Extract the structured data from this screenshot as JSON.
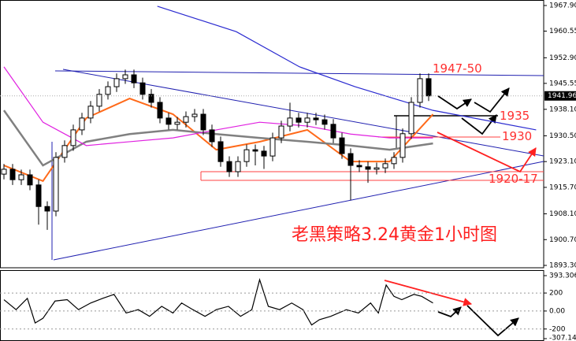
{
  "chart_data": {
    "type": "candlestick",
    "open": [
      1919.5,
      1920.9,
      1917.9,
      1919.3,
      1916.4,
      1910.2,
      1908.9,
      1924.3,
      1927.7,
      1932.2,
      1935.6,
      1939.0,
      1942.4,
      1944.6,
      1946.9,
      1948.0,
      1945.7,
      1942.4,
      1940.1,
      1935.6,
      1933.8,
      1934.4,
      1936.0,
      1936.7,
      1932.2,
      1928.8,
      1923.1,
      1920.2,
      1923.1,
      1926.5,
      1926.1,
      1924.7,
      1929.9,
      1933.3,
      1935.6,
      1934.4,
      1935.6,
      1935.1,
      1933.8,
      1929.9,
      1925.4,
      1922.0,
      1921.6,
      1920.9,
      1921.3,
      1922.5,
      1924.3,
      1931.1,
      1940.1,
      1946.9
    ],
    "close": [
      1920.9,
      1917.9,
      1919.3,
      1916.4,
      1910.2,
      1908.9,
      1924.3,
      1927.7,
      1932.2,
      1935.6,
      1939.0,
      1942.4,
      1944.6,
      1946.9,
      1948.0,
      1945.7,
      1942.4,
      1940.1,
      1935.6,
      1933.8,
      1934.4,
      1936.0,
      1936.7,
      1932.2,
      1928.8,
      1923.1,
      1920.2,
      1923.1,
      1926.5,
      1926.1,
      1924.7,
      1929.9,
      1933.3,
      1935.6,
      1934.4,
      1935.6,
      1935.1,
      1933.8,
      1929.9,
      1925.4,
      1922.0,
      1921.6,
      1920.9,
      1921.3,
      1922.5,
      1924.3,
      1931.1,
      1940.1,
      1946.9,
      1941.96
    ],
    "high": [
      1922.4,
      1922.4,
      1920.8,
      1920.8,
      1917.9,
      1911.7,
      1925.8,
      1929.2,
      1933.7,
      1937.1,
      1940.5,
      1943.9,
      1946.1,
      1948.4,
      1949.5,
      1949.5,
      1947.2,
      1943.9,
      1941.6,
      1937.1,
      1935.9,
      1937.5,
      1938.2,
      1938.2,
      1933.7,
      1930.3,
      1924.6,
      1924.6,
      1928.0,
      1928.0,
      1927.6,
      1931.4,
      1934.8,
      1940.0,
      1937.1,
      1937.1,
      1937.1,
      1936.6,
      1935.3,
      1931.4,
      1926.9,
      1923.5,
      1923.1,
      1922.8,
      1924.0,
      1925.8,
      1932.6,
      1941.6,
      1948.4,
      1948.4
    ],
    "low": [
      1918.0,
      1916.4,
      1916.4,
      1914.9,
      1905.0,
      1903.5,
      1907.4,
      1922.8,
      1926.2,
      1930.7,
      1934.1,
      1937.5,
      1940.9,
      1943.1,
      1945.4,
      1944.2,
      1940.9,
      1938.6,
      1934.1,
      1932.3,
      1932.3,
      1932.9,
      1934.5,
      1930.7,
      1927.3,
      1921.6,
      1918.7,
      1918.7,
      1921.6,
      1922.0,
      1921.0,
      1923.2,
      1928.4,
      1931.8,
      1932.9,
      1932.9,
      1933.6,
      1932.3,
      1928.4,
      1923.9,
      1912.0,
      1920.1,
      1917.0,
      1919.4,
      1919.8,
      1921.0,
      1922.8,
      1929.6,
      1938.6,
      1940.5
    ],
    "moving_averages": [
      {
        "color": "#ff6a1a",
        "x": [
          0,
          4.5,
          9.5,
          14.5,
          19.5,
          24.5,
          29.5,
          35,
          40,
          44.5,
          49.5
        ],
        "values": [
          1922.0,
          1917.5,
          1935.6,
          1941.2,
          1936.7,
          1926.5,
          1928.8,
          1932.2,
          1923.1,
          1923.1,
          1936.7
        ]
      },
      {
        "color": "#808080",
        "x": [
          0,
          4.5,
          9.5,
          14.5,
          19.5,
          24.5,
          29.5,
          35,
          40,
          44.5,
          49.5
        ],
        "values": [
          1937.8,
          1922.0,
          1928.8,
          1931.0,
          1932.2,
          1931.0,
          1929.9,
          1928.8,
          1927.7,
          1926.5,
          1928.3
        ]
      },
      {
        "color": "#e020e0",
        "x": [
          0,
          4.5,
          9.5,
          14.5,
          19.5,
          24.5,
          29.5,
          35,
          40,
          44.5,
          49.5
        ],
        "values": [
          1950.3,
          1934.4,
          1927.7,
          1928.8,
          1929.9,
          1932.2,
          1934.4,
          1933.3,
          1931.0,
          1929.9,
          1929.9
        ]
      },
      {
        "color": "#2a2ad0",
        "x": [
          17.7,
          26.8,
          34.1,
          40.5,
          49.5,
          61.4
        ],
        "values": [
          1967.7,
          1960.4,
          1950.3,
          1944.6,
          1937.8,
          1932.2
        ]
      }
    ],
    "ylim": [
      1893.3,
      1967.9
    ],
    "yticks": [
      {
        "value": 1967.9,
        "label": "1967.90"
      },
      1960.55,
      {
        "value": 1952.9,
        "label": "1952.90"
      },
      1945.55,
      {
        "value": 1938.1,
        "label": "1938.10"
      },
      {
        "value": 1930.5,
        "label": "1930.50"
      },
      {
        "value": 1923.1,
        "label": "1923.10"
      },
      {
        "value": 1915.7,
        "label": "1915.70"
      },
      {
        "value": 1908.1,
        "label": "1908.10"
      },
      {
        "value": 1900.7,
        "label": "1900.70"
      },
      {
        "value": 1893.3,
        "label": "1893.30"
      }
    ],
    "current_price": 1941.96,
    "annotations": [
      "1947-50",
      "1935",
      "1930",
      "1920-17",
      "老黑策略3.24黄金1小时图"
    ],
    "indicator": {
      "color": "#000000",
      "x": [
        0,
        1.4,
        2.7,
        3.6,
        4.5,
        5.9,
        7.3,
        8.6,
        10,
        11.4,
        12.7,
        14.1,
        15.5,
        16.8,
        18.2,
        19.5,
        20.5,
        21.8,
        23.2,
        24.5,
        25.9,
        27.3,
        28.6,
        29.5,
        30.5,
        31.8,
        33.2,
        34.5,
        35.5,
        36.4,
        37.7,
        39.5,
        40.9,
        42.3,
        43.2,
        44.1,
        45,
        45.9,
        47.3,
        48.2,
        49.5
      ],
      "values": [
        126,
        15,
        141,
        -133,
        -81,
        111,
        126,
        15,
        89,
        141,
        185,
        -22,
        15,
        -59,
        52,
        -22,
        89,
        15,
        -59,
        15,
        52,
        -59,
        15,
        348,
        52,
        15,
        89,
        15,
        -155,
        -96,
        -59,
        15,
        -22,
        89,
        -22,
        289,
        163,
        126,
        185,
        163,
        89
      ],
      "ylim": [
        -307.146,
        393.306
      ],
      "yticks": [
        393.306,
        200,
        {
          "value": 0,
          "label": "0.00"
        },
        -200,
        -307.146
      ]
    }
  }
}
